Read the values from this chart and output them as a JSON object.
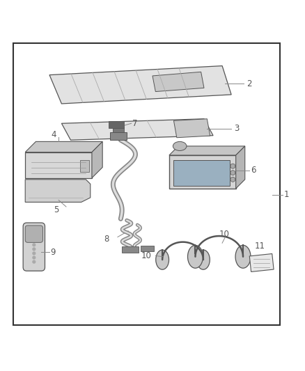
{
  "background_color": "#ffffff",
  "border_color": "#333333",
  "label_color": "#555555",
  "line_color": "#888888",
  "part_outline": "#555555",
  "fig_width": 4.38,
  "fig_height": 5.33,
  "dpi": 100
}
